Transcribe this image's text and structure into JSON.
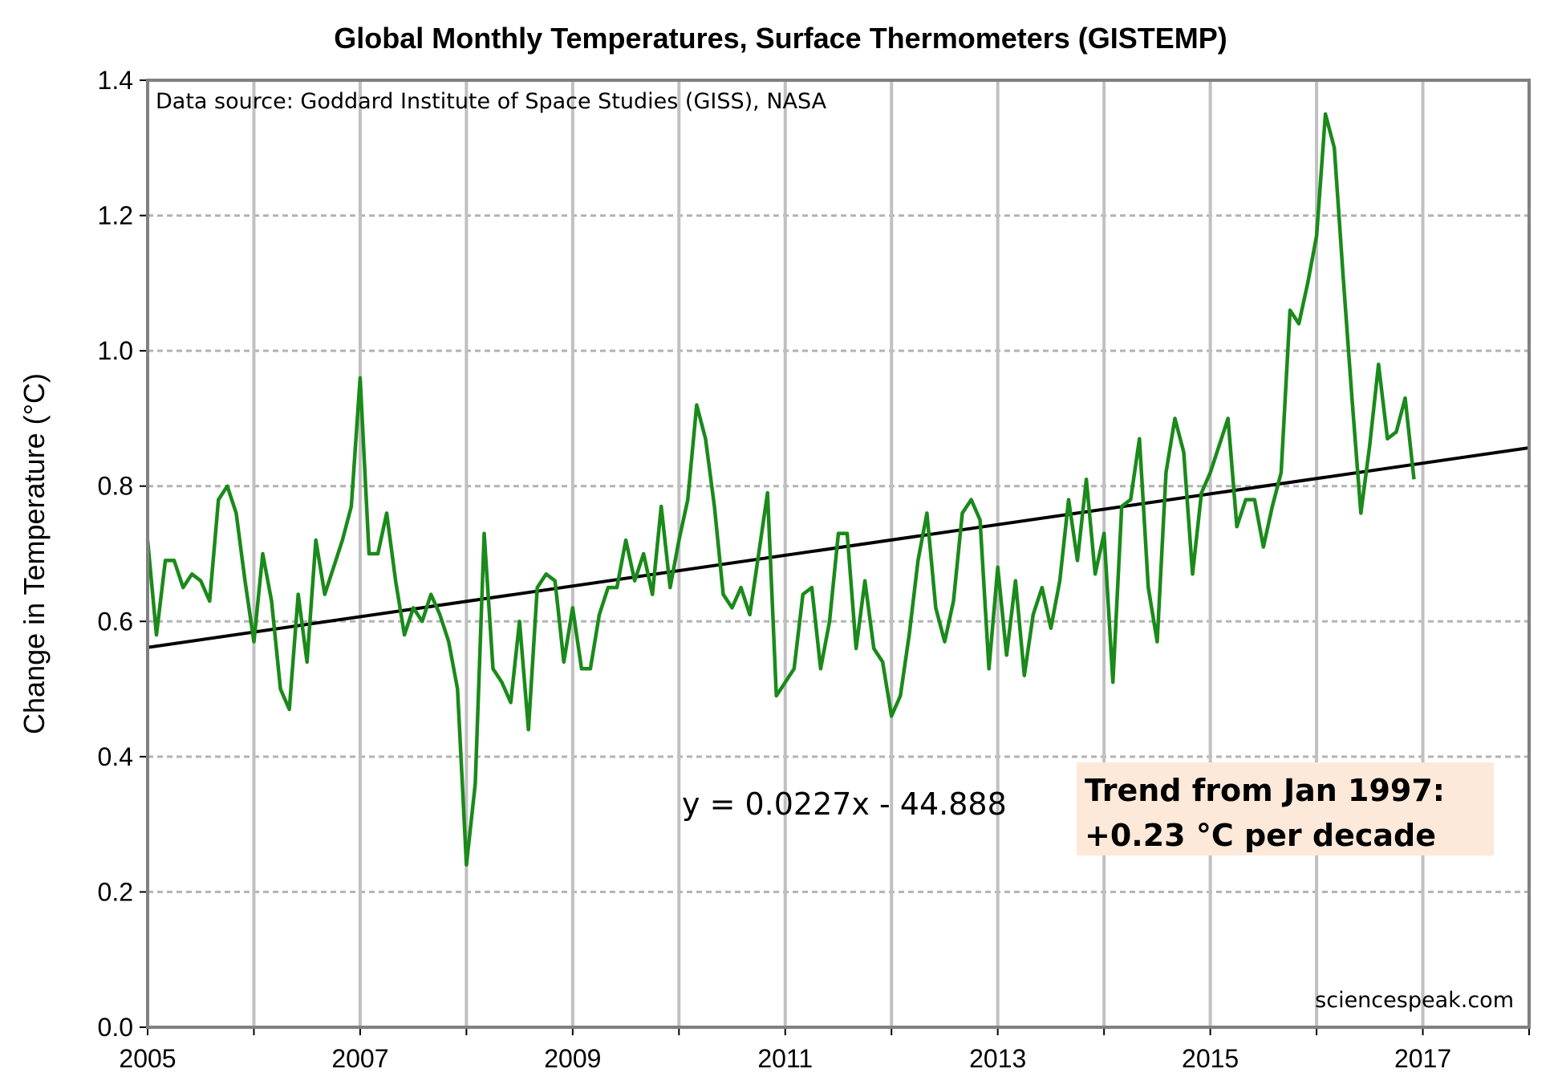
{
  "chart_data": {
    "type": "line",
    "title": "Global Monthly Temperatures, Surface Thermometers (GISTEMP)",
    "ylabel": "Change in Temperature  (°C)",
    "xlabel": "",
    "xlim": [
      2005,
      2018
    ],
    "ylim": [
      0.0,
      1.4
    ],
    "x_ticks": [
      2005,
      2007,
      2009,
      2011,
      2013,
      2015,
      2017
    ],
    "y_ticks": [
      "0.0",
      "0.2",
      "0.4",
      "0.6",
      "0.8",
      "1.0",
      "1.2",
      "1.4"
    ],
    "grid": true,
    "source_note": "Data source: Goddard Institute of Space Studies (GISS), NASA",
    "equation": "y = 0.0227x - 44.888",
    "trend_box": {
      "line1": "Trend from Jan 1997:",
      "line2": "+0.23 °C per decade",
      "fill": "#fde9d9"
    },
    "credit": "sciencespeak.com",
    "series": [
      {
        "color": "#1a8a1a",
        "start_year": 2005,
        "months_per_year": 12,
        "values": [
          0.72,
          0.58,
          0.69,
          0.69,
          0.65,
          0.67,
          0.66,
          0.63,
          0.78,
          0.8,
          0.76,
          0.66,
          0.57,
          0.7,
          0.63,
          0.5,
          0.47,
          0.64,
          0.54,
          0.72,
          0.64,
          0.68,
          0.72,
          0.77,
          0.96,
          0.7,
          0.7,
          0.76,
          0.66,
          0.58,
          0.62,
          0.6,
          0.64,
          0.61,
          0.57,
          0.5,
          0.24,
          0.36,
          0.73,
          0.53,
          0.51,
          0.48,
          0.6,
          0.44,
          0.65,
          0.67,
          0.66,
          0.54,
          0.62,
          0.53,
          0.53,
          0.61,
          0.65,
          0.65,
          0.72,
          0.66,
          0.7,
          0.64,
          0.77,
          0.65,
          0.72,
          0.78,
          0.92,
          0.87,
          0.77,
          0.64,
          0.62,
          0.65,
          0.61,
          0.7,
          0.79,
          0.49,
          0.51,
          0.53,
          0.64,
          0.65,
          0.53,
          0.6,
          0.73,
          0.73,
          0.56,
          0.66,
          0.56,
          0.54,
          0.46,
          0.49,
          0.58,
          0.69,
          0.76,
          0.62,
          0.57,
          0.63,
          0.76,
          0.78,
          0.75,
          0.53,
          0.68,
          0.55,
          0.66,
          0.52,
          0.61,
          0.65,
          0.59,
          0.66,
          0.78,
          0.69,
          0.81,
          0.67,
          0.73,
          0.51,
          0.77,
          0.78,
          0.87,
          0.65,
          0.57,
          0.82,
          0.9,
          0.85,
          0.67,
          0.79,
          0.82,
          0.86,
          0.9,
          0.74,
          0.78,
          0.78,
          0.71,
          0.77,
          0.82,
          1.06,
          1.04,
          1.1,
          1.17,
          1.35,
          1.3,
          1.11,
          0.93,
          0.76,
          0.86,
          0.98,
          0.87,
          0.88,
          0.93,
          0.81
        ]
      }
    ],
    "trendline": {
      "color": "#000000",
      "x": [
        2005,
        2018
      ],
      "y": [
        0.5615,
        0.8566
      ]
    }
  }
}
